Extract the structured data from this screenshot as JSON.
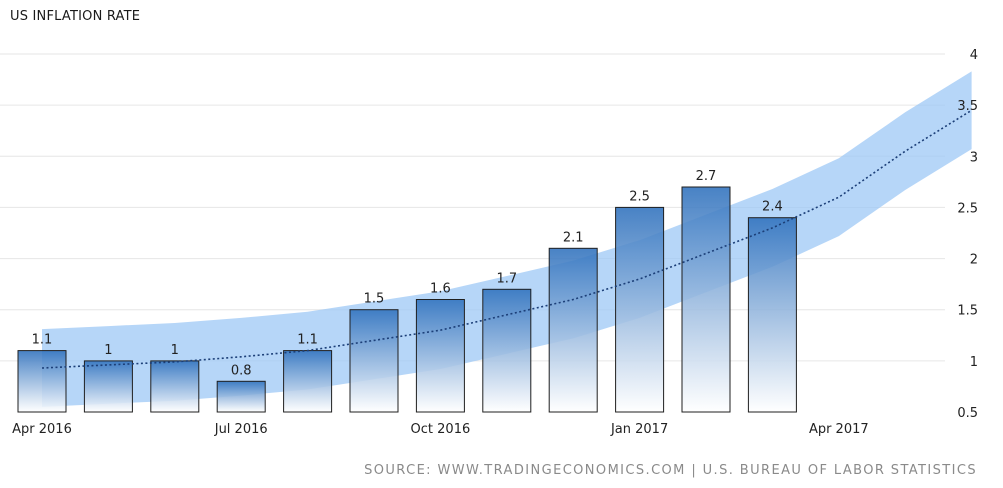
{
  "chart_data": {
    "type": "bar",
    "title": "US INFLATION RATE",
    "source": "SOURCE: WWW.TRADINGECONOMICS.COM | U.S. BUREAU OF LABOR STATISTICS",
    "x": [
      "2016-04",
      "2016-05",
      "2016-06",
      "2016-07",
      "2016-08",
      "2016-09",
      "2016-10",
      "2016-11",
      "2016-12",
      "2017-01",
      "2017-02",
      "2017-03"
    ],
    "values": [
      1.1,
      1,
      1,
      0.8,
      1.1,
      1.5,
      1.6,
      1.7,
      2.1,
      2.5,
      2.7,
      2.4
    ],
    "value_labels": [
      "1.1",
      "1",
      "1",
      "0.8",
      "1.1",
      "1.5",
      "1.6",
      "1.7",
      "2.1",
      "2.5",
      "2.7",
      "2.4"
    ],
    "x_ticks": [
      {
        "x": "2016-04",
        "label": "Apr 2016"
      },
      {
        "x": "2016-07",
        "label": "Jul 2016"
      },
      {
        "x": "2016-10",
        "label": "Oct 2016"
      },
      {
        "x": "2017-01",
        "label": "Jan 2017"
      },
      {
        "x": "2017-04",
        "label": "Apr 2017"
      }
    ],
    "y_ticks": [
      "0.5",
      "1",
      "1.5",
      "2",
      "2.5",
      "3",
      "3.5",
      "4"
    ],
    "ylim": [
      0.5,
      4
    ],
    "y_axis_side": "right",
    "grid": true,
    "trend": {
      "x": [
        "2016-04",
        "2016-05",
        "2016-06",
        "2016-07",
        "2016-08",
        "2016-09",
        "2016-10",
        "2016-11",
        "2016-12",
        "2017-01",
        "2017-02",
        "2017-03",
        "2017-04",
        "2017-05",
        "2017-06"
      ],
      "values": [
        0.93,
        0.96,
        0.99,
        1.04,
        1.1,
        1.2,
        1.3,
        1.45,
        1.6,
        1.8,
        2.05,
        2.3,
        2.6,
        3.05,
        3.45
      ],
      "band_half_width": 0.38
    },
    "colors": {
      "bar_top": "#2f71bd",
      "bar_bottom": "#ffffff",
      "bar_stroke": "#1f1f1f",
      "band": "#9ec8f5",
      "trend_line": "#1c3f78",
      "grid": "#e6e6e6"
    }
  }
}
